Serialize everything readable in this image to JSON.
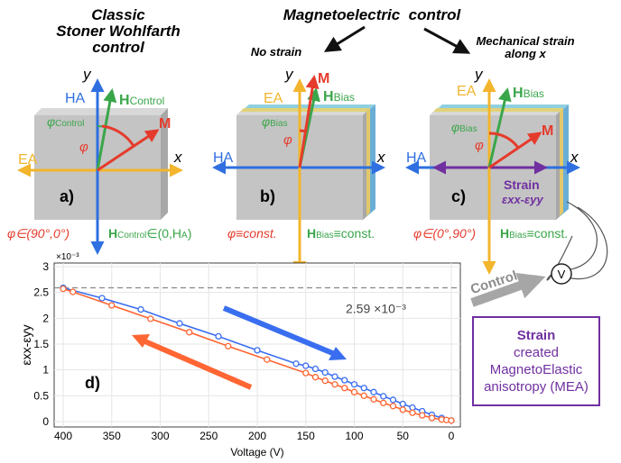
{
  "titles": {
    "classic_line1": "Classic",
    "classic_line2": "Stoner Wohlfarth",
    "classic_line3": "control",
    "me": "Magnetoelectric  control",
    "no_strain": "No strain",
    "strain_line1": "Mechanical strain",
    "strain_line2": "along x"
  },
  "panels": {
    "a": {
      "tag": "a)",
      "x": "x",
      "y": "y",
      "ha": "HA",
      "ea": "EA",
      "m": "M",
      "h_main": "H",
      "h_sub": "Control",
      "phi_sub": "Control",
      "phi": "φ",
      "cond_left": "φ∈(90°,0°)",
      "cond_right_main": "H",
      "cond_right_sub": "Control",
      "cond_right_tail": "∈(0,H",
      "cond_right_ha": "A",
      "cond_right_end": ")"
    },
    "b": {
      "tag": "b)",
      "x": "x",
      "y": "y",
      "ha": "HA",
      "ea": "EA",
      "m": "M",
      "h_main": "H",
      "h_sub": "Bias",
      "phi_sub": "Bias",
      "phi": "φ",
      "cond_left": "φ≡const.",
      "cond_right_main": "H",
      "cond_right_sub": "Bias",
      "cond_right_tail": "≡const."
    },
    "c": {
      "tag": "c)",
      "x": "x",
      "y": "y",
      "ha": "HA",
      "ea": "EA",
      "m": "M",
      "h_main": "H",
      "h_sub": "Bias",
      "phi_sub": "Bias",
      "phi": "φ",
      "strain": "Strain",
      "strain_eq": "εxx-εyy",
      "cond_left": "φ∈(0°,90°)",
      "cond_right_main": "H",
      "cond_right_sub": "Bias",
      "cond_right_tail": "≡const."
    }
  },
  "control_label": "Control",
  "voltmeter": "V",
  "mea_box": {
    "line1": "Strain",
    "line2": "created",
    "line3": "MagnetoElastic",
    "line4": "anisotropy (MEA)"
  },
  "colors": {
    "ha": "#2f6fe0",
    "ea": "#f2b52c",
    "h": "#3aa64a",
    "m": "#e53b2c",
    "strain": "#7030a0",
    "up": "#3a6ef0",
    "down": "#ff6633"
  },
  "chart_data": {
    "type": "line",
    "panel_tag": "d)",
    "xlabel": "Voltage (V)",
    "ylabel": "εxx-εyy",
    "y_exponent": "×10⁻³",
    "xlim": [
      400,
      0
    ],
    "ylim": [
      0,
      3
    ],
    "xticks": [
      400,
      350,
      300,
      250,
      200,
      150,
      100,
      50,
      0
    ],
    "yticks": [
      0,
      0.5,
      1,
      1.5,
      2,
      2.5,
      3
    ],
    "reference_line": {
      "value": 2.59,
      "label": "2.59 ×10⁻³"
    },
    "grid": true,
    "series": [
      {
        "direction": "increasing voltage",
        "x": [
          0,
          10,
          20,
          30,
          40,
          50,
          60,
          70,
          80,
          90,
          100,
          110,
          120,
          130,
          140,
          150,
          160,
          200,
          240,
          280,
          320,
          360,
          400
        ],
        "y": [
          0.02,
          0.07,
          0.13,
          0.2,
          0.27,
          0.34,
          0.42,
          0.49,
          0.57,
          0.65,
          0.72,
          0.8,
          0.87,
          0.95,
          1.02,
          1.08,
          1.12,
          1.38,
          1.65,
          1.9,
          2.17,
          2.39,
          2.59
        ]
      },
      {
        "direction": "decreasing voltage",
        "x": [
          400,
          390,
          350,
          310,
          270,
          230,
          190,
          150,
          140,
          130,
          120,
          110,
          100,
          90,
          80,
          70,
          60,
          50,
          40,
          30,
          20,
          10,
          5,
          0
        ],
        "y": [
          2.57,
          2.51,
          2.25,
          1.99,
          1.73,
          1.46,
          1.2,
          0.94,
          0.86,
          0.79,
          0.72,
          0.65,
          0.57,
          0.5,
          0.43,
          0.36,
          0.3,
          0.23,
          0.17,
          0.12,
          0.07,
          0.04,
          0.03,
          0.02
        ]
      }
    ]
  }
}
